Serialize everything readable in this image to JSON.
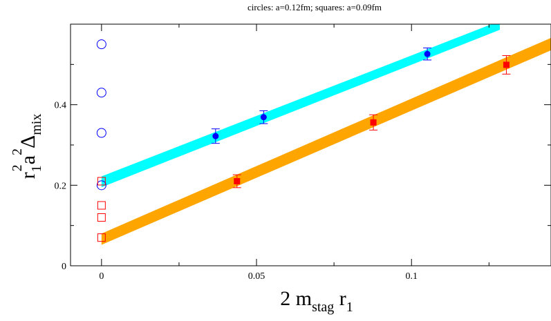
{
  "chart_data": {
    "type": "scatter",
    "title": "circles: a=0.12fm; squares: a=0.09fm",
    "xlabel": {
      "main": "2 m",
      "sub1": "stag",
      "mid": " r",
      "sub2": "1"
    },
    "ylabel": {
      "r": "r",
      "r_sub": "1",
      "r_sup": "2",
      "a": "a",
      "a_sup": "2",
      "delta": "Δ",
      "delta_sub": "mix"
    },
    "xlim": [
      -0.01,
      0.145
    ],
    "ylim": [
      0,
      0.6
    ],
    "xticks": [
      0,
      0.05,
      0.1
    ],
    "xtick_labels": [
      "0",
      "0.05",
      "0.1"
    ],
    "yticks": [
      0,
      0.2,
      0.4
    ],
    "ytick_labels": [
      "0",
      "0.2",
      "0.4"
    ],
    "colors": {
      "fine_band": "#00ffff",
      "coarse_band": "#ffa500",
      "circles": "#0000ff",
      "squares": "#ff0000"
    },
    "series": [
      {
        "marker": "filled-circle",
        "color": "#0000ff",
        "x": [
          0.0368,
          0.0523,
          0.1051
        ],
        "y": [
          0.322,
          0.369,
          0.526
        ],
        "yerr": [
          0.018,
          0.016,
          0.015
        ]
      },
      {
        "marker": "filled-square",
        "color": "#ff0000",
        "x": [
          0.0437,
          0.0877,
          0.1306
        ],
        "y": [
          0.21,
          0.356,
          0.499
        ],
        "yerr": [
          0.016,
          0.019,
          0.023
        ]
      },
      {
        "marker": "open-circle",
        "color": "#0000ff",
        "x": [
          0,
          0,
          0,
          0
        ],
        "y": [
          0.55,
          0.43,
          0.33,
          0.2
        ]
      },
      {
        "marker": "open-square",
        "color": "#ff0000",
        "x": [
          0,
          0,
          0,
          0
        ],
        "y": [
          0.21,
          0.15,
          0.12,
          0.07
        ]
      }
    ],
    "bands": [
      {
        "color": "#00ffff",
        "x_range": [
          0,
          0.1285
        ],
        "y_start": [
          0.195,
          0.222
        ],
        "y_end": [
          0.586,
          0.608
        ]
      },
      {
        "color": "#ffa500",
        "x_range": [
          0,
          0.145
        ],
        "y_start": [
          0.052,
          0.08
        ],
        "y_end": [
          0.535,
          0.566
        ]
      }
    ]
  }
}
